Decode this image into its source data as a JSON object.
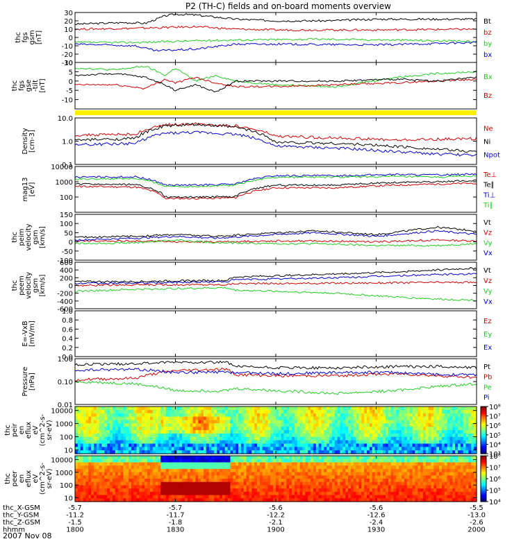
{
  "title": "P2 (TH-C) fields and on-board moments overview",
  "date_label": "2007 Nov 08",
  "colors": {
    "black": "#000000",
    "red": "#cc0000",
    "green": "#22cc22",
    "blue": "#0000cc",
    "yellow": "#ffee00"
  },
  "chart_data": [
    {
      "type": "line",
      "ylabel": [
        "thc",
        "fgs",
        "gsm",
        "[nT]"
      ],
      "ylim": [
        -30,
        30
      ],
      "yticks": [
        30,
        20,
        10,
        0,
        -10,
        -20,
        -30
      ],
      "series": [
        {
          "name": "Bt",
          "color": "black",
          "x": [
            18.0,
            18.25,
            18.35,
            18.45,
            18.5,
            18.6,
            18.8,
            19.0,
            19.25,
            19.5,
            20.0
          ],
          "values": [
            16,
            18,
            17,
            26,
            28,
            27,
            22,
            20,
            20,
            22,
            22
          ]
        },
        {
          "name": "bz",
          "color": "red",
          "x": [
            18.0,
            18.3,
            18.45,
            18.6,
            18.8,
            19.0,
            19.5,
            20.0
          ],
          "values": [
            10,
            11,
            12,
            13,
            10,
            9,
            9,
            10
          ]
        },
        {
          "name": "by",
          "color": "green",
          "x": [
            18.0,
            18.3,
            18.45,
            18.6,
            18.8,
            19.2,
            19.6,
            20.0
          ],
          "values": [
            -6,
            -6,
            -5,
            -4,
            -3,
            -2,
            -3,
            -5
          ]
        },
        {
          "name": "bx",
          "color": "blue",
          "x": [
            18.0,
            18.3,
            18.4,
            18.5,
            18.6,
            18.8,
            19.0,
            19.5,
            20.0
          ],
          "values": [
            -8,
            -10,
            -16,
            -15,
            -14,
            -8,
            -8,
            -9,
            -6
          ]
        }
      ]
    },
    {
      "type": "line",
      "ylabel": [
        "thc",
        "fgs",
        "gse",
        "-tilt",
        "[nT]"
      ],
      "ylim": [
        -15,
        10
      ],
      "yticks": [
        10,
        5,
        0,
        -5,
        -10
      ],
      "series": [
        {
          "name": "Bx",
          "color": "green",
          "x": [
            18.0,
            18.2,
            18.35,
            18.45,
            18.5,
            18.6,
            18.7,
            18.8,
            19.0,
            19.3,
            19.6,
            19.8,
            20.0
          ],
          "values": [
            7,
            6,
            8,
            3,
            7,
            0,
            3,
            0,
            -2,
            -3,
            2,
            4,
            5
          ]
        },
        {
          "name": "Bz",
          "color": "red",
          "x": [
            18.0,
            18.2,
            18.35,
            18.45,
            18.5,
            18.6,
            18.7,
            18.8,
            19.0,
            19.3,
            19.6,
            19.8,
            20.0
          ],
          "values": [
            -2,
            -2,
            -4,
            1,
            -1,
            2,
            -1,
            -3,
            -3,
            -2,
            -1,
            0,
            1
          ]
        },
        {
          "name": "",
          "color": "black",
          "x": [
            18.0,
            18.2,
            18.35,
            18.45,
            18.5,
            18.6,
            18.7,
            18.8,
            19.0,
            19.3,
            19.6,
            19.8,
            20.0
          ],
          "values": [
            3,
            4,
            2,
            -2,
            -5,
            -2,
            -6,
            0,
            0,
            0,
            1,
            0,
            2
          ]
        }
      ]
    },
    {
      "type": "line",
      "ylabel": [
        "Density",
        "[cm-3]"
      ],
      "ylim": [
        0.1,
        10
      ],
      "yscale": "log",
      "yticks": [
        10.0,
        1.0,
        0.1
      ],
      "ytick_labels": [
        "10.0",
        "1.0",
        "0.1"
      ],
      "series": [
        {
          "name": "Ne",
          "color": "red",
          "x": [
            18.0,
            18.3,
            18.45,
            18.6,
            18.8,
            19.0,
            19.3,
            19.6,
            19.8,
            20.0
          ],
          "values": [
            1.8,
            2.0,
            5.0,
            5.5,
            4.5,
            1.6,
            1.4,
            1.1,
            1.2,
            1.3
          ]
        },
        {
          "name": "Ni",
          "color": "black",
          "x": [
            18.0,
            18.3,
            18.45,
            18.6,
            18.8,
            19.0,
            19.3,
            19.6,
            19.8,
            20.0
          ],
          "values": [
            1.1,
            1.3,
            4.5,
            5.2,
            4.0,
            0.9,
            0.8,
            0.6,
            0.45,
            0.35
          ]
        },
        {
          "name": "Npot",
          "color": "blue",
          "x": [
            18.0,
            18.3,
            18.45,
            18.6,
            18.8,
            19.0,
            19.3,
            19.6,
            19.8,
            20.0
          ],
          "values": [
            0.7,
            0.8,
            2.2,
            2.4,
            2.0,
            0.6,
            0.5,
            0.35,
            0.28,
            0.25
          ]
        }
      ]
    },
    {
      "type": "line",
      "ylabel": [
        "mag13",
        "[eV]"
      ],
      "ylim": [
        10,
        10000
      ],
      "yscale": "log",
      "yticks": [
        10000,
        1000,
        100
      ],
      "ytick_labels": [
        "10000",
        "1000",
        "100"
      ],
      "series": [
        {
          "name": "Te⊥",
          "color": "red",
          "x": [
            18.0,
            18.3,
            18.45,
            18.6,
            18.8,
            19.0,
            19.3,
            19.6,
            19.8,
            20.0
          ],
          "values": [
            500,
            450,
            80,
            80,
            90,
            400,
            400,
            600,
            700,
            800
          ]
        },
        {
          "name": "Te∥",
          "color": "black",
          "x": [
            18.0,
            18.3,
            18.45,
            18.6,
            18.8,
            19.0,
            19.3,
            19.6,
            19.8,
            20.0
          ],
          "values": [
            700,
            650,
            100,
            100,
            110,
            600,
            600,
            900,
            1000,
            1200
          ]
        },
        {
          "name": "Ti⊥",
          "color": "blue",
          "x": [
            18.0,
            18.3,
            18.45,
            18.6,
            18.8,
            19.0,
            19.3,
            19.6,
            19.8,
            20.0
          ],
          "values": [
            2000,
            2100,
            600,
            600,
            700,
            2500,
            2500,
            3000,
            2800,
            3200
          ]
        },
        {
          "name": "Ti∥",
          "color": "green",
          "x": [
            18.0,
            18.3,
            18.45,
            18.6,
            18.8,
            19.0,
            19.3,
            19.6,
            19.8,
            20.0
          ],
          "values": [
            1500,
            1600,
            500,
            500,
            600,
            2000,
            2000,
            2200,
            2000,
            2400
          ]
        }
      ]
    },
    {
      "type": "line",
      "ylabel": [
        "thc",
        "peim",
        "velocity",
        "gsm",
        "[km/s]"
      ],
      "ylim": [
        -100,
        150
      ],
      "yticks": [
        150,
        100,
        50,
        0,
        -50,
        -100
      ],
      "series": [
        {
          "name": "Vt",
          "color": "black",
          "x": [
            18.0,
            18.3,
            18.5,
            18.7,
            19.0,
            19.2,
            19.5,
            19.8,
            20.0
          ],
          "values": [
            25,
            30,
            40,
            30,
            50,
            60,
            40,
            80,
            60
          ]
        },
        {
          "name": "Vz",
          "color": "red",
          "x": [
            18.0,
            18.3,
            18.5,
            18.7,
            19.0,
            19.2,
            19.5,
            19.8,
            20.0
          ],
          "values": [
            5,
            5,
            0,
            0,
            5,
            5,
            0,
            10,
            5
          ]
        },
        {
          "name": "Vy",
          "color": "green",
          "x": [
            18.0,
            18.3,
            18.5,
            18.7,
            19.0,
            19.2,
            19.5,
            19.8,
            20.0
          ],
          "values": [
            -10,
            -5,
            10,
            -5,
            -10,
            -10,
            -20,
            -20,
            -10
          ]
        },
        {
          "name": "Vx",
          "color": "blue",
          "x": [
            18.0,
            18.3,
            18.5,
            18.7,
            19.0,
            19.2,
            19.5,
            19.8,
            20.0
          ],
          "values": [
            10,
            20,
            30,
            20,
            40,
            50,
            30,
            60,
            40
          ]
        }
      ]
    },
    {
      "type": "line",
      "ylabel": [
        "thc",
        "peem",
        "velocity",
        "gsm",
        "[km/s]"
      ],
      "ylim": [
        -600,
        600
      ],
      "yticks": [
        600,
        400,
        200,
        0,
        -200,
        -400,
        -600
      ],
      "series": [
        {
          "name": "Vt",
          "color": "black",
          "x": [
            18.0,
            18.3,
            18.5,
            18.75,
            18.8,
            19.0,
            19.3,
            19.6,
            19.8,
            20.0
          ],
          "values": [
            100,
            100,
            120,
            130,
            220,
            250,
            300,
            350,
            400,
            450
          ]
        },
        {
          "name": "Vz",
          "color": "red",
          "x": [
            18.0,
            18.3,
            18.5,
            18.75,
            18.8,
            19.0,
            19.3,
            19.6,
            19.8,
            20.0
          ],
          "values": [
            0,
            20,
            20,
            20,
            50,
            50,
            60,
            70,
            80,
            80
          ]
        },
        {
          "name": "Vy",
          "color": "green",
          "x": [
            18.0,
            18.3,
            18.5,
            18.75,
            18.8,
            19.0,
            19.3,
            19.6,
            19.8,
            20.0
          ],
          "values": [
            -150,
            -100,
            -80,
            -60,
            -120,
            -150,
            -200,
            -300,
            -350,
            -380
          ]
        },
        {
          "name": "Vx",
          "color": "blue",
          "x": [
            18.0,
            18.3,
            18.5,
            18.75,
            18.8,
            19.0,
            19.3,
            19.6,
            19.8,
            20.0
          ],
          "values": [
            50,
            60,
            80,
            100,
            150,
            170,
            200,
            250,
            280,
            300
          ]
        }
      ]
    },
    {
      "type": "line",
      "ylabel": [
        "E=-VxB",
        "[mV/m]"
      ],
      "ylim": [
        0,
        1
      ],
      "yticks": [
        1.0,
        0.8,
        0.6,
        0.4,
        0.2,
        0.0
      ],
      "ytick_labels": [
        "1.0",
        "0.8",
        "0.6",
        "0.4",
        "0.2",
        "0.0"
      ],
      "series": [
        {
          "name": "Ez",
          "color": "red",
          "x": [],
          "values": []
        },
        {
          "name": "Ey",
          "color": "green",
          "x": [],
          "values": []
        },
        {
          "name": "Ex",
          "color": "blue",
          "x": [],
          "values": []
        }
      ]
    },
    {
      "type": "line",
      "ylabel": [
        "Pressure",
        "[nPa]"
      ],
      "ylim": [
        0.01,
        1
      ],
      "yscale": "log",
      "yticks": [
        1.0,
        0.1,
        0.01
      ],
      "ytick_labels": [
        "1.00",
        "0.10",
        "0.01"
      ],
      "series": [
        {
          "name": "Pt",
          "color": "black",
          "x": [
            18.0,
            18.3,
            18.5,
            18.75,
            18.8,
            19.0,
            19.3,
            19.6,
            19.8,
            20.0
          ],
          "values": [
            0.55,
            0.6,
            0.7,
            0.7,
            0.45,
            0.4,
            0.4,
            0.45,
            0.45,
            0.4
          ]
        },
        {
          "name": "Pb",
          "color": "red",
          "x": [
            18.0,
            18.3,
            18.5,
            18.75,
            18.8,
            19.0,
            19.3,
            19.6,
            19.8,
            20.0
          ],
          "values": [
            0.12,
            0.14,
            0.3,
            0.35,
            0.2,
            0.18,
            0.18,
            0.22,
            0.18,
            0.15
          ]
        },
        {
          "name": "Pe",
          "color": "green",
          "x": [
            18.0,
            18.3,
            18.5,
            18.75,
            18.8,
            19.0,
            19.3,
            19.6,
            19.8,
            20.0
          ],
          "values": [
            0.1,
            0.08,
            0.04,
            0.04,
            0.05,
            0.04,
            0.03,
            0.04,
            0.06,
            0.08
          ]
        },
        {
          "name": "Pi",
          "color": "blue",
          "x": [
            18.0,
            18.3,
            18.5,
            18.75,
            18.8,
            19.0,
            19.3,
            19.6,
            19.8,
            20.0
          ],
          "values": [
            0.3,
            0.35,
            0.25,
            0.25,
            0.25,
            0.22,
            0.25,
            0.25,
            0.2,
            0.2
          ]
        }
      ]
    },
    {
      "type": "heatmap",
      "ylabel": [
        "thc",
        "peir",
        "en",
        "eflux",
        "eV",
        "(cm^2-s-",
        "sr-eV)"
      ],
      "yscale": "log",
      "ylim": [
        5,
        20000
      ],
      "yticks": [
        10000,
        1000,
        100,
        10
      ],
      "ytick_labels": [
        "10000",
        "1000",
        "100",
        "10"
      ],
      "colorbar_ticks": [
        "10³",
        "10⁴",
        "10⁵",
        "10⁶",
        "10⁷",
        "10⁸"
      ],
      "colorbar_range": [
        3,
        8
      ]
    },
    {
      "type": "heatmap",
      "ylabel": [
        "thc",
        "peer",
        "en",
        "eflux",
        "eV",
        "(cm^2-s-",
        "sr-eV)"
      ],
      "yscale": "log",
      "ylim": [
        5,
        20000
      ],
      "yticks": [
        10000,
        1000,
        100,
        10
      ],
      "ytick_labels": [
        "10000",
        "1000",
        "100",
        "10"
      ],
      "colorbar_ticks": [
        "10⁴",
        "10⁵",
        "10⁶",
        "10⁷",
        "10⁸"
      ],
      "colorbar_range": [
        4,
        8
      ]
    }
  ],
  "x_axis": {
    "range": [
      18.0,
      20.0
    ],
    "ticks": [
      18.0,
      18.5,
      19.0,
      19.5,
      20.0
    ],
    "rows": [
      {
        "label": "thc_X-GSM",
        "values": [
          "-5.7",
          "-5.7",
          "-5.6",
          "-5.6",
          "-5.5"
        ]
      },
      {
        "label": "thc_Y-GSM",
        "values": [
          "-11.2",
          "-11.7",
          "-12.2",
          "-12.6",
          "-13.0"
        ]
      },
      {
        "label": "thc_Z-GSM",
        "values": [
          "-1.5",
          "-1.8",
          "-2.1",
          "-2.4",
          "-2.6"
        ]
      },
      {
        "label": "hhmm",
        "values": [
          "1800",
          "1830",
          "1900",
          "1930",
          "2000"
        ]
      }
    ]
  }
}
